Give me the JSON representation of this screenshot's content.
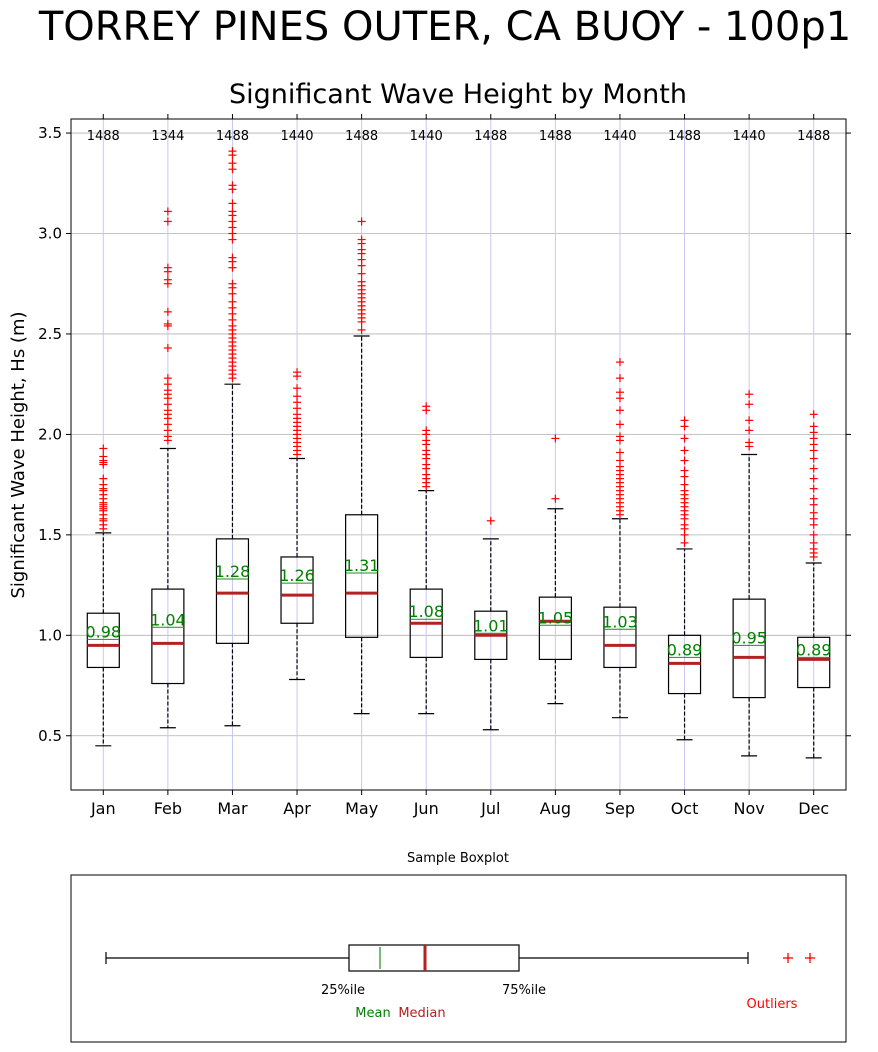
{
  "page_title": "TORREY PINES OUTER, CA BUOY - 100p1",
  "chart_data": [
    {
      "type": "box",
      "title": "Significant Wave Height by Month",
      "xlabel": "",
      "ylabel": "Significant Wave Height, Hs (m)",
      "ylim": [
        0.23,
        3.57
      ],
      "yticks": [
        0.5,
        1.0,
        1.5,
        2.0,
        2.5,
        3.0,
        3.5
      ],
      "ytick_labels": [
        "0.5",
        "1.0",
        "1.5",
        "2.0",
        "2.5",
        "3.0",
        "3.5"
      ],
      "grid": true,
      "categories": [
        "Jan",
        "Feb",
        "Mar",
        "Apr",
        "May",
        "Jun",
        "Jul",
        "Aug",
        "Sep",
        "Oct",
        "Nov",
        "Dec"
      ],
      "counts": [
        "1488",
        "1344",
        "1488",
        "1440",
        "1488",
        "1440",
        "1488",
        "1488",
        "1440",
        "1488",
        "1440",
        "1488"
      ],
      "mean_labels": [
        "0.98",
        "1.04",
        "1.28",
        "1.26",
        "1.31",
        "1.08",
        "1.01",
        "1.05",
        "1.03",
        "0.89",
        "0.95",
        "0.89"
      ],
      "boxes": [
        {
          "whislo": 0.45,
          "q1": 0.84,
          "med": 0.95,
          "mean": 0.98,
          "q3": 1.11,
          "whishi": 1.51,
          "fliers": [
            1.53,
            1.55,
            1.57,
            1.58,
            1.6,
            1.62,
            1.63,
            1.64,
            1.65,
            1.66,
            1.68,
            1.7,
            1.72,
            1.73,
            1.75,
            1.78,
            1.85,
            1.86,
            1.87,
            1.89,
            1.93
          ]
        },
        {
          "whislo": 0.54,
          "q1": 0.76,
          "med": 0.96,
          "mean": 1.04,
          "q3": 1.23,
          "whishi": 1.93,
          "fliers": [
            1.97,
            1.99,
            2.02,
            2.05,
            2.08,
            2.1,
            2.12,
            2.15,
            2.18,
            2.2,
            2.22,
            2.25,
            2.28,
            2.43,
            2.54,
            2.55,
            2.61,
            2.75,
            2.77,
            2.81,
            2.83,
            3.06,
            3.11
          ]
        },
        {
          "whislo": 0.55,
          "q1": 0.96,
          "med": 1.21,
          "mean": 1.28,
          "q3": 1.48,
          "whishi": 2.25,
          "fliers": [
            2.28,
            2.3,
            2.32,
            2.34,
            2.36,
            2.38,
            2.4,
            2.42,
            2.44,
            2.46,
            2.48,
            2.5,
            2.52,
            2.54,
            2.57,
            2.6,
            2.63,
            2.66,
            2.7,
            2.73,
            2.75,
            2.83,
            2.86,
            2.88,
            2.97,
            3.0,
            3.03,
            3.06,
            3.09,
            3.11,
            3.15,
            3.22,
            3.24,
            3.32,
            3.35,
            3.39,
            3.41
          ]
        },
        {
          "whislo": 0.78,
          "q1": 1.06,
          "med": 1.2,
          "mean": 1.26,
          "q3": 1.39,
          "whishi": 1.88,
          "fliers": [
            1.9,
            1.92,
            1.94,
            1.96,
            1.98,
            2.0,
            2.02,
            2.04,
            2.06,
            2.08,
            2.1,
            2.13,
            2.16,
            2.19,
            2.23,
            2.29,
            2.31
          ]
        },
        {
          "whislo": 0.61,
          "q1": 0.99,
          "med": 1.21,
          "mean": 1.31,
          "q3": 1.6,
          "whishi": 2.49,
          "fliers": [
            2.52,
            2.56,
            2.58,
            2.6,
            2.62,
            2.64,
            2.66,
            2.68,
            2.7,
            2.72,
            2.74,
            2.76,
            2.8,
            2.84,
            2.87,
            2.9,
            2.92,
            2.95,
            2.97,
            3.06
          ]
        },
        {
          "whislo": 0.61,
          "q1": 0.89,
          "med": 1.06,
          "mean": 1.08,
          "q3": 1.23,
          "whishi": 1.72,
          "fliers": [
            1.74,
            1.76,
            1.78,
            1.8,
            1.83,
            1.85,
            1.88,
            1.9,
            1.92,
            1.95,
            1.97,
            2.0,
            2.02,
            2.12,
            2.14
          ]
        },
        {
          "whislo": 0.53,
          "q1": 0.88,
          "med": 1.0,
          "mean": 1.01,
          "q3": 1.12,
          "whishi": 1.48,
          "fliers": [
            1.57
          ]
        },
        {
          "whislo": 0.66,
          "q1": 0.88,
          "med": 1.07,
          "mean": 1.05,
          "q3": 1.19,
          "whishi": 1.63,
          "fliers": [
            1.68,
            1.98
          ]
        },
        {
          "whislo": 0.59,
          "q1": 0.84,
          "med": 0.95,
          "mean": 1.03,
          "q3": 1.14,
          "whishi": 1.58,
          "fliers": [
            1.6,
            1.62,
            1.64,
            1.66,
            1.68,
            1.7,
            1.72,
            1.74,
            1.76,
            1.78,
            1.8,
            1.82,
            1.84,
            1.87,
            1.91,
            1.97,
            1.99,
            2.05,
            2.12,
            2.18,
            2.21,
            2.28,
            2.36
          ]
        },
        {
          "whislo": 0.48,
          "q1": 0.71,
          "med": 0.86,
          "mean": 0.89,
          "q3": 1.0,
          "whishi": 1.43,
          "fliers": [
            1.46,
            1.5,
            1.53,
            1.55,
            1.58,
            1.6,
            1.62,
            1.64,
            1.66,
            1.68,
            1.7,
            1.72,
            1.75,
            1.79,
            1.82,
            1.87,
            1.92,
            1.98,
            2.04,
            2.07
          ]
        },
        {
          "whislo": 0.4,
          "q1": 0.69,
          "med": 0.89,
          "mean": 0.95,
          "q3": 1.18,
          "whishi": 1.9,
          "fliers": [
            1.94,
            1.96,
            2.02,
            2.07,
            2.15,
            2.2
          ]
        },
        {
          "whislo": 0.39,
          "q1": 0.74,
          "med": 0.88,
          "mean": 0.89,
          "q3": 0.99,
          "whishi": 1.36,
          "fliers": [
            1.39,
            1.41,
            1.43,
            1.46,
            1.5,
            1.55,
            1.58,
            1.61,
            1.65,
            1.68,
            1.73,
            1.78,
            1.83,
            1.88,
            1.92,
            1.95,
            1.98,
            2.01,
            2.04,
            2.1
          ]
        }
      ]
    },
    {
      "type": "box",
      "title": "Sample Boxplot",
      "annotations": {
        "q1_label": "25%ile",
        "q3_label": "75%ile",
        "mean_label": "Mean",
        "median_label": "Median",
        "outliers_label": "Outliers"
      }
    }
  ],
  "colors": {
    "box": "#000000",
    "median": "#b22222",
    "mean": "#228b22",
    "mean_text": "#008000",
    "outlier": "#ff0000",
    "grid_h": "#b0b0b0",
    "grid_v": "#c8c8f0"
  }
}
